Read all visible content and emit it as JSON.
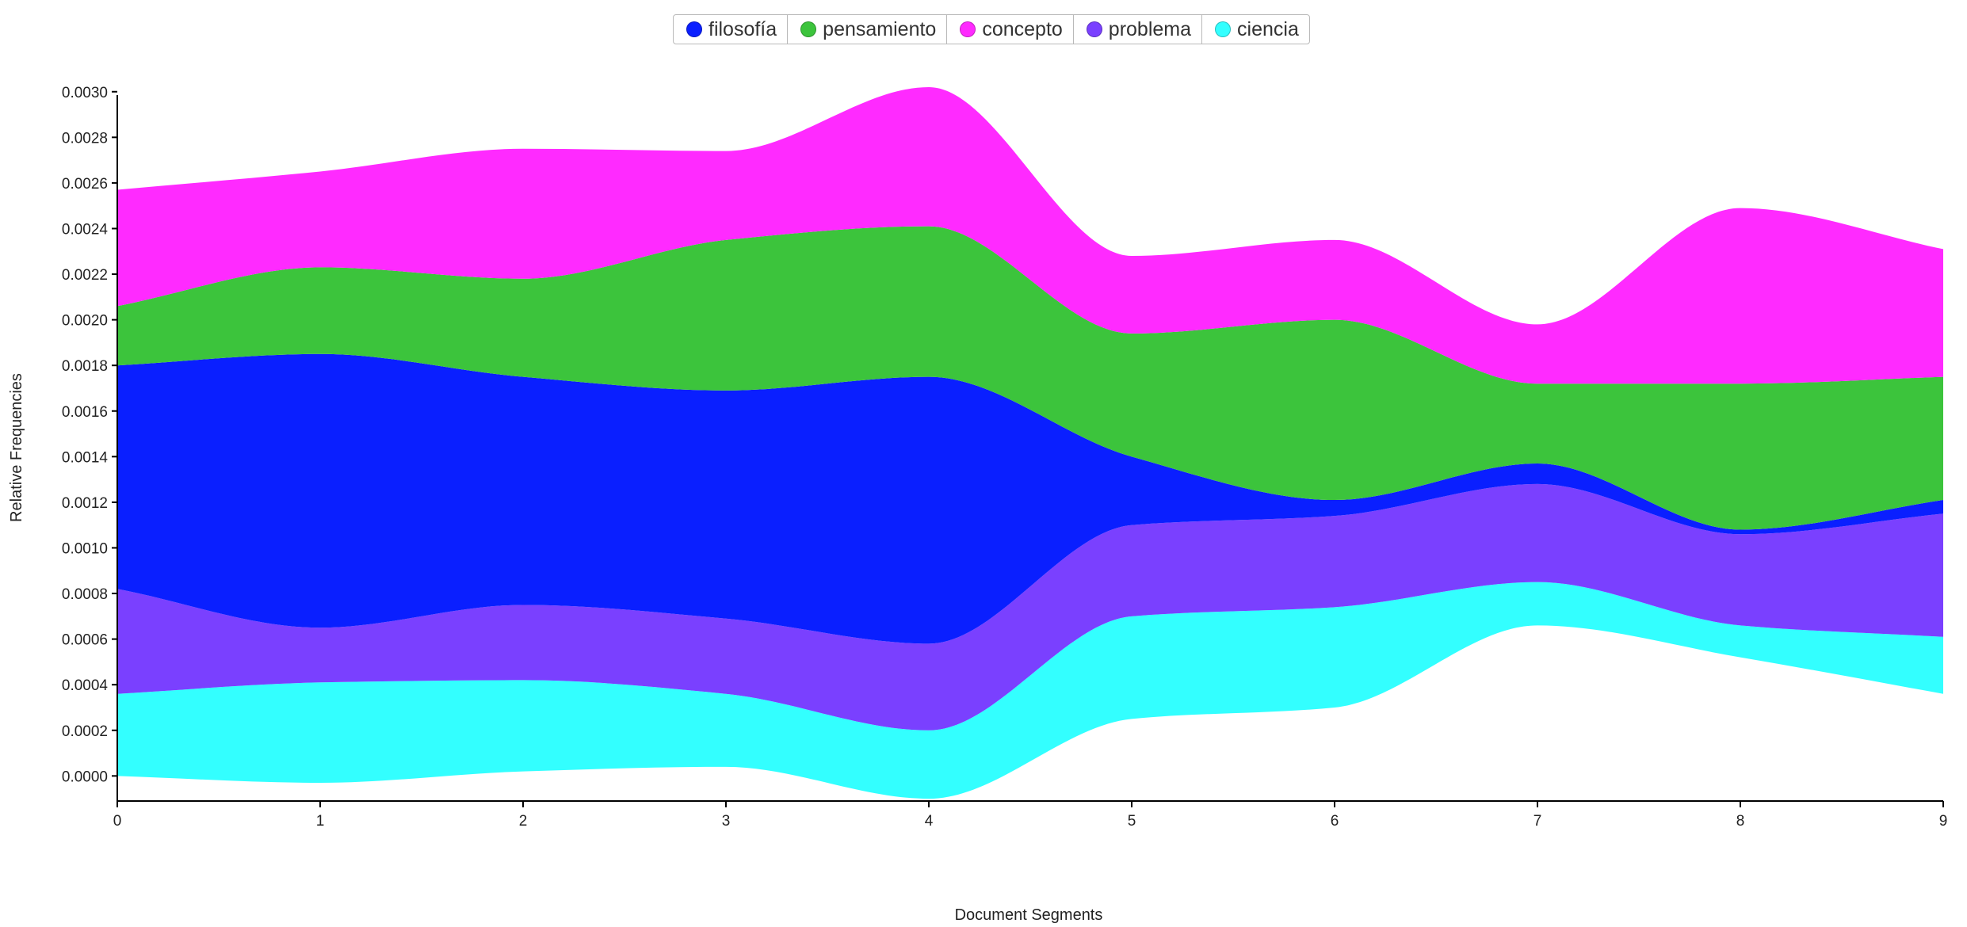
{
  "chart_data": {
    "type": "area",
    "stacked": true,
    "smoothing": "monotone",
    "title": "",
    "xlabel": "Document Segments",
    "ylabel": "Relative Frequencies",
    "x": [
      0,
      1,
      2,
      3,
      4,
      5,
      6,
      7,
      8,
      9
    ],
    "x_ticks": [
      "0",
      "1",
      "2",
      "3",
      "4",
      "5",
      "6",
      "7",
      "8",
      "9"
    ],
    "xlim": [
      0,
      9
    ],
    "ylim": [
      -0.00011,
      0.00302
    ],
    "y_ticks": [
      "0.0000",
      "0.0002",
      "0.0004",
      "0.0006",
      "0.0008",
      "0.0010",
      "0.0012",
      "0.0014",
      "0.0016",
      "0.0018",
      "0.0020",
      "0.0022",
      "0.0024",
      "0.0026",
      "0.0028",
      "0.0030"
    ],
    "legend": "top-center",
    "baseline": [
      0.0,
      -3e-05,
      2e-05,
      4e-05,
      -0.0001,
      0.00025,
      0.0003,
      0.00066,
      0.00052,
      0.00036
    ],
    "series": [
      {
        "name": "ciencia",
        "color": "#33ffff",
        "values": [
          0.00036,
          0.00044,
          0.0004,
          0.00032,
          0.0003,
          0.00045,
          0.00044,
          0.00019,
          0.00014,
          0.00025
        ]
      },
      {
        "name": "problema",
        "color": "#7a40ff",
        "values": [
          0.00046,
          0.00024,
          0.00033,
          0.00033,
          0.00038,
          0.0004,
          0.0004,
          0.00043,
          0.0004,
          0.00054
        ]
      },
      {
        "name": "filosofía",
        "color": "#0a1fff",
        "values": [
          0.00098,
          0.0012,
          0.001,
          0.001,
          0.00117,
          0.0003,
          7e-05,
          9e-05,
          2e-05,
          6e-05
        ]
      },
      {
        "name": "pensamiento",
        "color": "#3cc43c",
        "values": [
          0.00026,
          0.00038,
          0.00043,
          0.00066,
          0.00066,
          0.00054,
          0.00079,
          0.00035,
          0.00064,
          0.00054
        ]
      },
      {
        "name": "concepto",
        "color": "#ff2aff",
        "values": [
          0.00051,
          0.00042,
          0.00057,
          0.00039,
          0.00061,
          0.00034,
          0.00035,
          0.00026,
          0.00077,
          0.00056
        ]
      }
    ],
    "legend_entries": [
      {
        "name": "filosofía",
        "color": "#0a1fff"
      },
      {
        "name": "pensamiento",
        "color": "#3cc43c"
      },
      {
        "name": "concepto",
        "color": "#ff2aff"
      },
      {
        "name": "problema",
        "color": "#7a40ff"
      },
      {
        "name": "ciencia",
        "color": "#33ffff"
      }
    ]
  }
}
